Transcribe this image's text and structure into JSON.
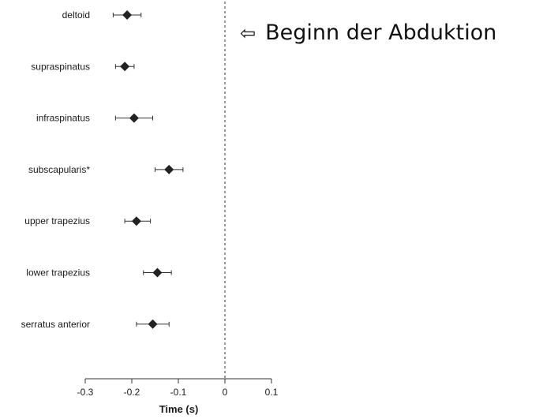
{
  "annotation": {
    "arrow": "⇦",
    "text": "Beginn der Abduktion"
  },
  "chart_data": {
    "type": "forest",
    "categories": [
      "deltoid",
      "supraspinatus",
      "infraspinatus",
      "subscapularis*",
      "upper trapezius",
      "lower trapezius",
      "serratus anterior"
    ],
    "estimates": [
      -0.21,
      -0.215,
      -0.195,
      -0.12,
      -0.19,
      -0.145,
      -0.155
    ],
    "ci_low": [
      -0.24,
      -0.235,
      -0.235,
      -0.15,
      -0.215,
      -0.175,
      -0.19
    ],
    "ci_high": [
      -0.18,
      -0.195,
      -0.155,
      -0.09,
      -0.16,
      -0.115,
      -0.12
    ],
    "xlabel": "Time (s)",
    "xlim": [
      -0.3,
      0.1
    ],
    "xticks": [
      -0.3,
      -0.2,
      -0.1,
      0,
      0.1
    ],
    "xtick_labels": [
      "-0.3",
      "-0.2",
      "-0.1",
      "0",
      "0.1"
    ],
    "reference_line": 0,
    "marker": "diamond",
    "colors": {
      "marker": "#222222",
      "line": "#333333",
      "text": "#1a1a1a"
    }
  }
}
